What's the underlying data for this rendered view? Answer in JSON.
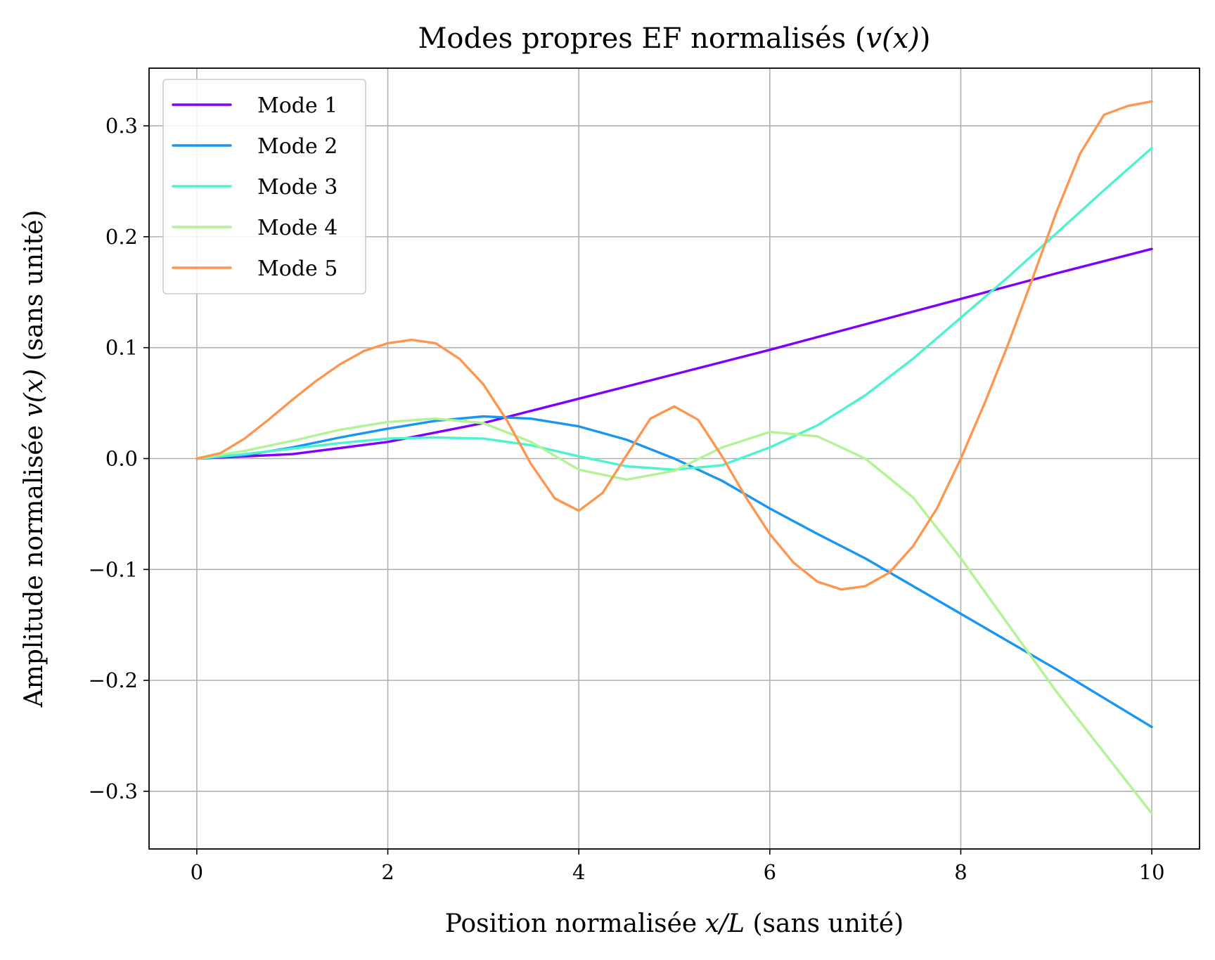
{
  "chart_data": {
    "type": "line",
    "title": {
      "pre": "Modes propres EF normalisés (",
      "math": "v(x)",
      "post": ")"
    },
    "xlabel": {
      "pre": "Position normalisée ",
      "math": "x/L",
      "post": " (sans unité)"
    },
    "ylabel": {
      "pre": "Amplitude normalisée ",
      "math": "v(x)",
      "post": " (sans unité)"
    },
    "xlim": [
      -0.5,
      10.5
    ],
    "ylim": [
      -0.352,
      0.352
    ],
    "xticks": [
      0,
      2,
      4,
      6,
      8,
      10
    ],
    "xtick_labels": [
      "0",
      "2",
      "4",
      "6",
      "8",
      "10"
    ],
    "yticks": [
      -0.3,
      -0.2,
      -0.1,
      0.0,
      0.1,
      0.2,
      0.3
    ],
    "ytick_labels": [
      "−0.3",
      "−0.2",
      "−0.1",
      "0.0",
      "0.1",
      "0.2",
      "0.3"
    ],
    "grid": true,
    "legend_position": "top-left",
    "series": [
      {
        "name": "Mode 1",
        "color": "#8000ff",
        "x": [
          0,
          1,
          2,
          3,
          4,
          5,
          6,
          7,
          8,
          9,
          10
        ],
        "y": [
          0.0,
          0.004,
          0.015,
          0.032,
          0.054,
          0.076,
          0.098,
          0.121,
          0.144,
          0.167,
          0.189
        ]
      },
      {
        "name": "Mode 2",
        "color": "#1996f3",
        "x": [
          0,
          0.5,
          1,
          1.5,
          2,
          2.5,
          3,
          3.5,
          4,
          4.5,
          5,
          5.5,
          6,
          6.5,
          7,
          8,
          9,
          10
        ],
        "y": [
          0.0,
          0.003,
          0.01,
          0.019,
          0.027,
          0.034,
          0.038,
          0.036,
          0.029,
          0.017,
          0.0,
          -0.02,
          -0.045,
          -0.068,
          -0.09,
          -0.14,
          -0.19,
          -0.242
        ]
      },
      {
        "name": "Mode 3",
        "color": "#4df3ce",
        "x": [
          0,
          0.5,
          1,
          1.5,
          2,
          2.5,
          3,
          3.5,
          4,
          4.5,
          5,
          5.5,
          6,
          6.5,
          7,
          7.5,
          8,
          8.5,
          9,
          9.5,
          10
        ],
        "y": [
          0.0,
          0.004,
          0.009,
          0.014,
          0.018,
          0.019,
          0.018,
          0.012,
          0.002,
          -0.007,
          -0.01,
          -0.006,
          0.01,
          0.03,
          0.057,
          0.09,
          0.127,
          0.164,
          0.203,
          0.242,
          0.28
        ]
      },
      {
        "name": "Mode 4",
        "color": "#b2f396",
        "x": [
          0,
          0.5,
          1,
          1.5,
          2,
          2.5,
          3,
          3.5,
          4,
          4.5,
          5,
          5.5,
          6,
          6.5,
          7,
          7.5,
          8,
          8.5,
          9,
          9.5,
          10
        ],
        "y": [
          0.0,
          0.007,
          0.016,
          0.026,
          0.033,
          0.036,
          0.032,
          0.015,
          -0.01,
          -0.019,
          -0.011,
          0.01,
          0.024,
          0.02,
          0.0,
          -0.035,
          -0.09,
          -0.15,
          -0.21,
          -0.265,
          -0.32
        ]
      },
      {
        "name": "Mode 5",
        "color": "#ff964f",
        "x": [
          0,
          0.25,
          0.5,
          0.75,
          1,
          1.25,
          1.5,
          1.75,
          2,
          2.25,
          2.5,
          2.75,
          3,
          3.25,
          3.5,
          3.75,
          4,
          4.25,
          4.5,
          4.75,
          5,
          5.25,
          5.5,
          5.75,
          6,
          6.25,
          6.5,
          6.75,
          7,
          7.25,
          7.5,
          7.75,
          8,
          8.25,
          8.5,
          8.75,
          9,
          9.25,
          9.5,
          9.75,
          10
        ],
        "y": [
          0.0,
          0.005,
          0.018,
          0.035,
          0.053,
          0.07,
          0.085,
          0.097,
          0.104,
          0.107,
          0.104,
          0.09,
          0.067,
          0.034,
          -0.005,
          -0.036,
          -0.047,
          -0.031,
          0.003,
          0.036,
          0.047,
          0.035,
          0.002,
          -0.035,
          -0.068,
          -0.094,
          -0.111,
          -0.118,
          -0.115,
          -0.103,
          -0.079,
          -0.045,
          0.0,
          0.05,
          0.104,
          0.162,
          0.222,
          0.275,
          0.31,
          0.318,
          0.322
        ]
      }
    ]
  }
}
